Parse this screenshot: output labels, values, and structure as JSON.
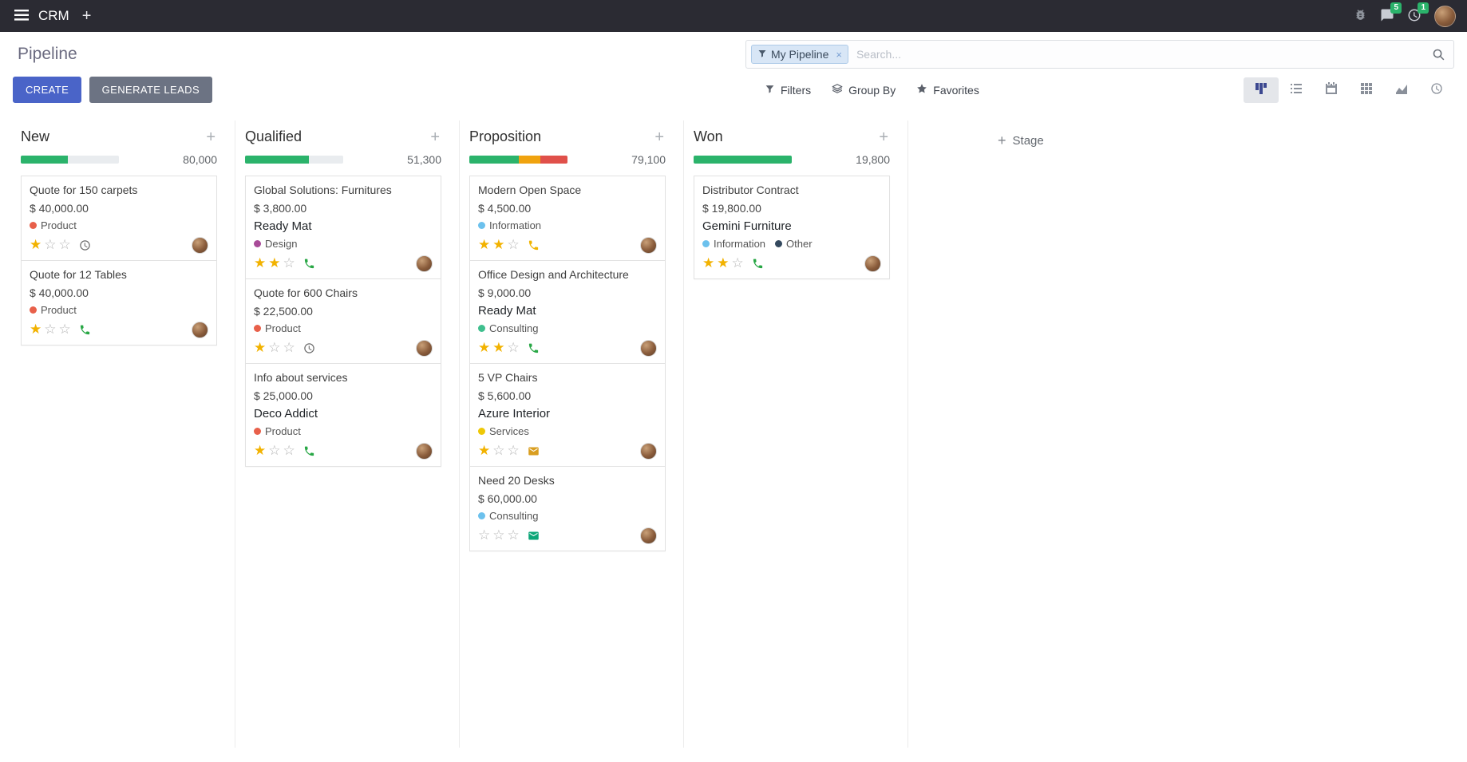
{
  "topbar": {
    "app_name": "CRM",
    "message_count": "5",
    "activity_count": "1"
  },
  "panel": {
    "title": "Pipeline",
    "create_label": "CREATE",
    "generate_leads_label": "GENERATE LEADS",
    "filters_label": "Filters",
    "group_by_label": "Group By",
    "favorites_label": "Favorites",
    "facet_label": "My Pipeline",
    "search_placeholder": "Search..."
  },
  "colors": {
    "primary_button": "#4a64c8",
    "secondary_button": "#6c7383",
    "topbar_bg": "#2b2b33",
    "badge": "#2bb36b",
    "star_active": "#f2b200"
  },
  "board": {
    "add_stage_label": "Stage",
    "columns": [
      {
        "name": "New",
        "total": "80,000",
        "progress": [
          {
            "status": "success",
            "color": "#2bb36b",
            "pct": 48
          }
        ],
        "cards": [
          {
            "title": "Quote for 150 carpets",
            "amount": "$ 40,000.00",
            "tags": [
              {
                "label": "Product",
                "color": "#e8604a"
              }
            ],
            "stars": 1,
            "activity": {
              "icon": "clock",
              "color": "#6f6f6f"
            }
          },
          {
            "title": "Quote for 12 Tables",
            "amount": "$ 40,000.00",
            "tags": [
              {
                "label": "Product",
                "color": "#e8604a"
              }
            ],
            "stars": 1,
            "activity": {
              "icon": "phone",
              "color": "#28a745"
            }
          }
        ]
      },
      {
        "name": "Qualified",
        "total": "51,300",
        "progress": [
          {
            "status": "success",
            "color": "#2bb36b",
            "pct": 65
          }
        ],
        "cards": [
          {
            "title": "Global Solutions: Furnitures",
            "amount": "$ 3,800.00",
            "partner": "Ready Mat",
            "tags": [
              {
                "label": "Design",
                "color": "#a84b98"
              }
            ],
            "stars": 2,
            "activity": {
              "icon": "phone",
              "color": "#28a745"
            }
          },
          {
            "title": "Quote for 600 Chairs",
            "amount": "$ 22,500.00",
            "tags": [
              {
                "label": "Product",
                "color": "#e8604a"
              }
            ],
            "stars": 1,
            "activity": {
              "icon": "clock",
              "color": "#6f6f6f"
            }
          },
          {
            "title": "Info about services",
            "amount": "$ 25,000.00",
            "partner": "Deco Addict",
            "tags": [
              {
                "label": "Product",
                "color": "#e8604a"
              }
            ],
            "stars": 1,
            "activity": {
              "icon": "phone",
              "color": "#28a745"
            }
          }
        ]
      },
      {
        "name": "Proposition",
        "total": "79,100",
        "progress": [
          {
            "status": "success",
            "color": "#2bb36b",
            "pct": 50
          },
          {
            "status": "warning",
            "color": "#f0a30f",
            "pct": 22
          },
          {
            "status": "danger",
            "color": "#e0504a",
            "pct": 28
          }
        ],
        "cards": [
          {
            "title": "Modern Open Space",
            "amount": "$ 4,500.00",
            "tags": [
              {
                "label": "Information",
                "color": "#6cc1ed"
              }
            ],
            "stars": 2,
            "activity": {
              "icon": "phone",
              "color": "#f0b400"
            }
          },
          {
            "title": "Office Design and Architecture",
            "amount": "$ 9,000.00",
            "partner": "Ready Mat",
            "tags": [
              {
                "label": "Consulting",
                "color": "#3fbf8e"
              }
            ],
            "stars": 2,
            "activity": {
              "icon": "phone",
              "color": "#28a745"
            }
          },
          {
            "title": "5 VP Chairs",
            "amount": "$ 5,600.00",
            "partner": "Azure Interior",
            "tags": [
              {
                "label": "Services",
                "color": "#eec806"
              }
            ],
            "stars": 1,
            "activity": {
              "icon": "envelope",
              "color": "#d99e20"
            }
          },
          {
            "title": "Need 20 Desks",
            "amount": "$ 60,000.00",
            "tags": [
              {
                "label": "Consulting",
                "color": "#6cc1ed"
              }
            ],
            "stars": 0,
            "activity": {
              "icon": "envelope",
              "color": "#0ca678"
            }
          }
        ]
      },
      {
        "name": "Won",
        "total": "19,800",
        "progress": [
          {
            "status": "success",
            "color": "#2bb36b",
            "pct": 100
          }
        ],
        "cards": [
          {
            "title": "Distributor Contract",
            "amount": "$ 19,800.00",
            "partner": "Gemini Furniture",
            "tags": [
              {
                "label": "Information",
                "color": "#6cc1ed"
              },
              {
                "label": "Other",
                "color": "#34495e"
              }
            ],
            "stars": 2,
            "activity": {
              "icon": "phone",
              "color": "#28a745"
            }
          }
        ]
      }
    ]
  }
}
